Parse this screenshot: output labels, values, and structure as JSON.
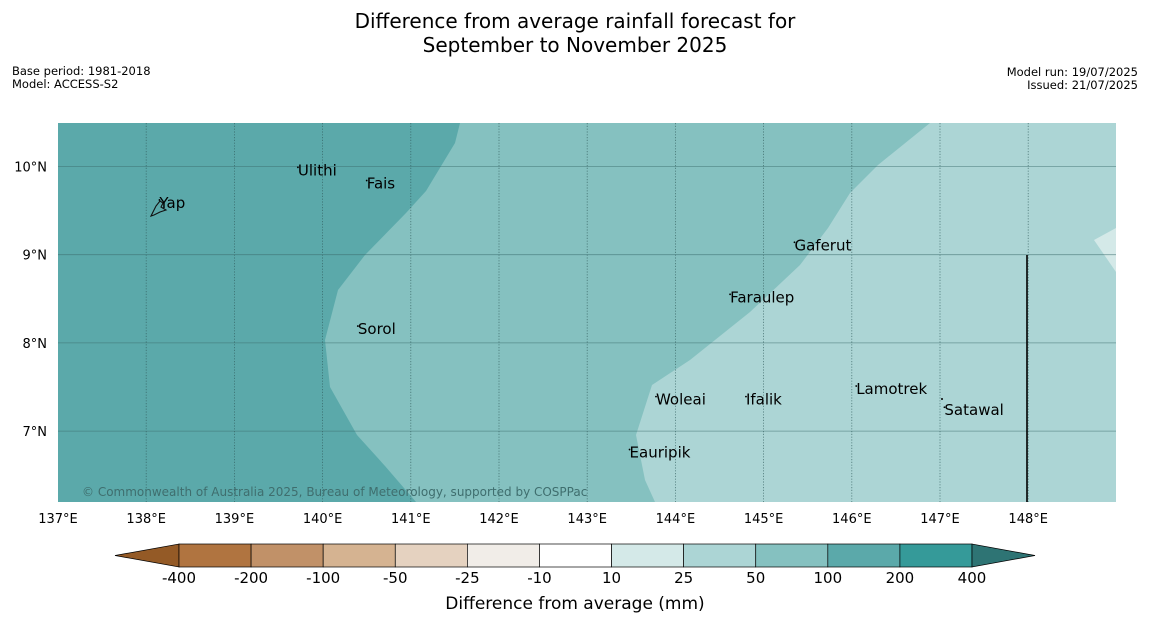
{
  "title": {
    "line1": "Difference from average rainfall forecast for",
    "line2": "September to November 2025"
  },
  "meta_left": {
    "base_period": "Base period: 1981-2018",
    "model": "Model: ACCESS-S2"
  },
  "meta_right": {
    "model_run": "Model run: 19/07/2025",
    "issued": "Issued: 21/07/2025"
  },
  "copyright": "© Commonwealth of Australia 2025, Bureau of Meteorology, supported by COSPPac",
  "map": {
    "lon_ticks": [
      "137°E",
      "138°E",
      "139°E",
      "140°E",
      "141°E",
      "142°E",
      "143°E",
      "144°E",
      "145°E",
      "146°E",
      "147°E",
      "148°E"
    ],
    "lat_ticks": [
      "10°N",
      "9°N",
      "8°N",
      "7°N"
    ],
    "places": [
      {
        "name": "Yap",
        "lon": 138.15,
        "lat": 9.53
      },
      {
        "name": "Ulithi",
        "lon": 139.72,
        "lat": 9.9
      },
      {
        "name": "Fais",
        "lon": 140.5,
        "lat": 9.75
      },
      {
        "name": "Sorol",
        "lon": 140.4,
        "lat": 8.1
      },
      {
        "name": "Gaferut",
        "lon": 145.35,
        "lat": 9.05
      },
      {
        "name": "Faraulep",
        "lon": 144.62,
        "lat": 8.46
      },
      {
        "name": "Lamotrek",
        "lon": 146.05,
        "lat": 7.42
      },
      {
        "name": "Woleai",
        "lon": 143.78,
        "lat": 7.3
      },
      {
        "name": "Ifalik",
        "lon": 144.8,
        "lat": 7.3
      },
      {
        "name": "Satawal",
        "lon": 147.05,
        "lat": 7.18
      },
      {
        "name": "Eauripik",
        "lon": 143.48,
        "lat": 6.7
      }
    ]
  },
  "legend": {
    "title": "Difference from average (mm)",
    "labels": [
      "-400",
      "-200",
      "-100",
      "-50",
      "-25",
      "-10",
      "10",
      "25",
      "50",
      "100",
      "200",
      "400"
    ],
    "colors": [
      "#945a26",
      "#b07440",
      "#c19168",
      "#d5b391",
      "#e5d2c0",
      "#f1ede8",
      "#ffffff",
      "#d4e9e8",
      "#acd5d5",
      "#85c1c0",
      "#5ba9aa",
      "#359a99",
      "#2e7474"
    ]
  }
}
